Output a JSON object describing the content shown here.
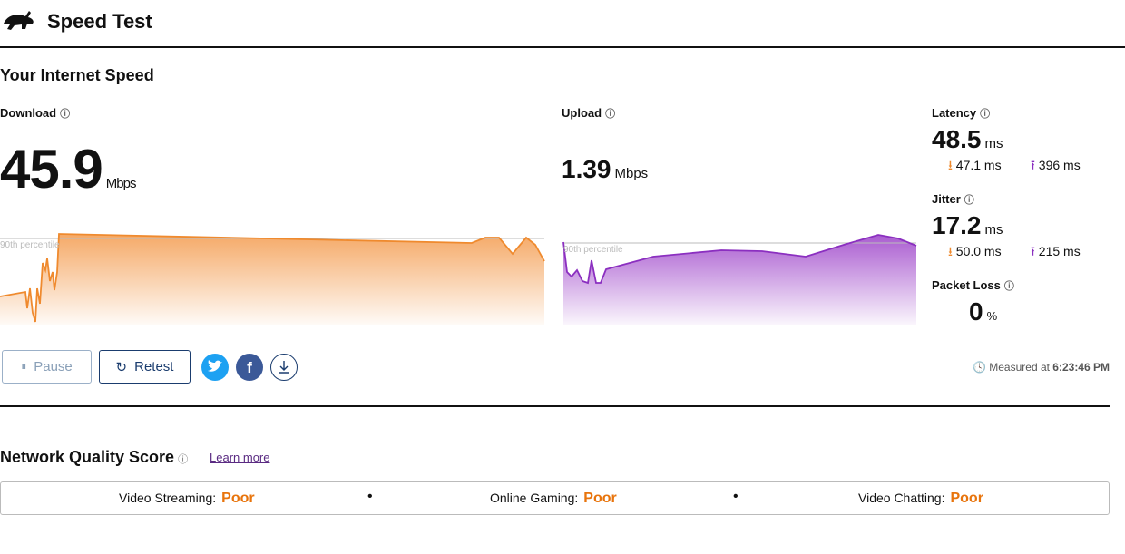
{
  "header": {
    "title": "Speed Test"
  },
  "speed": {
    "title": "Your Internet Speed",
    "download": {
      "label": "Download",
      "value": "45.9",
      "unit": "Mbps",
      "percentile": "90th percentile"
    },
    "upload": {
      "label": "Upload",
      "value": "1.39",
      "unit": "Mbps",
      "percentile": "90th percentile"
    },
    "latency": {
      "label": "Latency",
      "value": "48.5",
      "unit": "ms",
      "down": "47.1 ms",
      "up": "396 ms"
    },
    "jitter": {
      "label": "Jitter",
      "value": "17.2",
      "unit": "ms",
      "down": "50.0 ms",
      "up": "215 ms"
    },
    "packet_loss": {
      "label": "Packet Loss",
      "value": "0",
      "unit": "%"
    }
  },
  "actions": {
    "pause": "Pause",
    "retest": "Retest",
    "measured_label": "Measured at",
    "measured_time": "6:23:46 PM"
  },
  "quality": {
    "title": "Network Quality Score",
    "link": "Learn more",
    "items": [
      {
        "label": "Video Streaming:",
        "value": "Poor"
      },
      {
        "label": "Online Gaming:",
        "value": "Poor"
      },
      {
        "label": "Video Chatting:",
        "value": "Poor"
      }
    ]
  }
}
